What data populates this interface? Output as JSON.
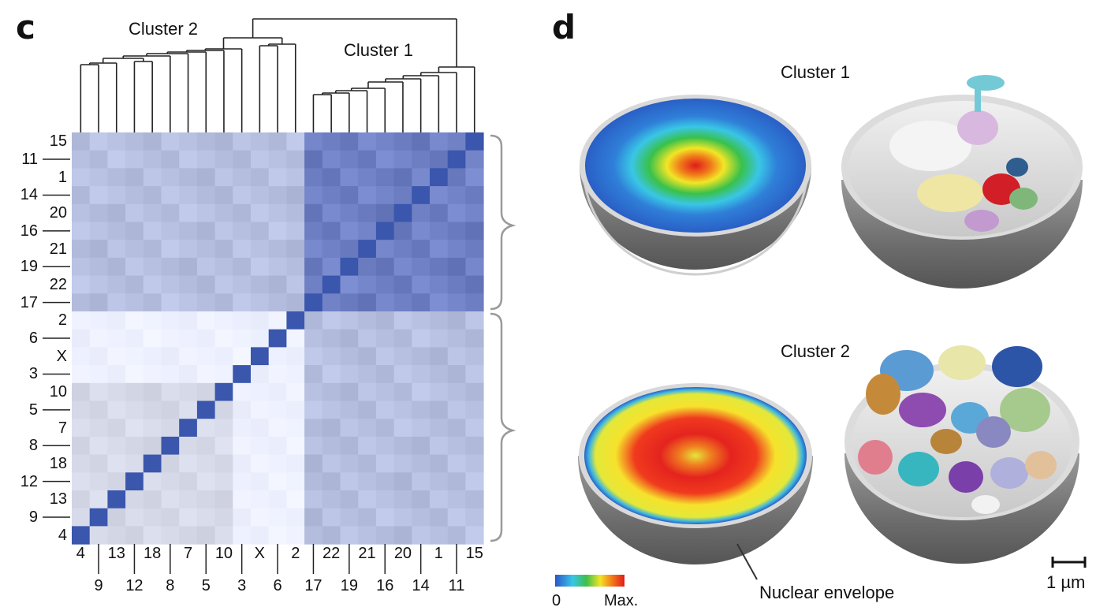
{
  "panel_c": {
    "letter": "c",
    "cluster2_label": "Cluster 2",
    "cluster1_label": "Cluster 1",
    "order": [
      "4",
      "9",
      "13",
      "12",
      "18",
      "8",
      "7",
      "5",
      "10",
      "3",
      "X",
      "6",
      "2",
      "17",
      "22",
      "19",
      "21",
      "16",
      "20",
      "14",
      "1",
      "11",
      "15"
    ],
    "bottom_top_row": [
      "4",
      "13",
      "18",
      "7",
      "10",
      "X",
      "2",
      "22",
      "21",
      "20",
      "1",
      "15"
    ],
    "bottom_bottom_row": [
      "9",
      "12",
      "8",
      "5",
      "3",
      "6",
      "17",
      "19",
      "16",
      "14",
      "11"
    ],
    "left_right_col": [
      "15",
      "1",
      "20",
      "21",
      "22",
      "2",
      "X",
      "10",
      "7",
      "18",
      "13",
      "4"
    ],
    "left_left_col": [
      "11",
      "14",
      "16",
      "19",
      "17",
      "6",
      "3",
      "5",
      "8",
      "12",
      "9"
    ],
    "colors": {
      "diag": "#3a56ad",
      "intra1": "#6f80c4",
      "cross": "#b6bfe0",
      "intra2": "#dfe2f1",
      "white": "#ffffff"
    }
  },
  "panel_d": {
    "letter": "d",
    "cluster1_label": "Cluster 1",
    "cluster2_label": "Cluster 2",
    "envelope_label": "Nuclear envelope",
    "scale_label": "1 µm",
    "colorbar_min": "0",
    "colorbar_max": "Max."
  }
}
